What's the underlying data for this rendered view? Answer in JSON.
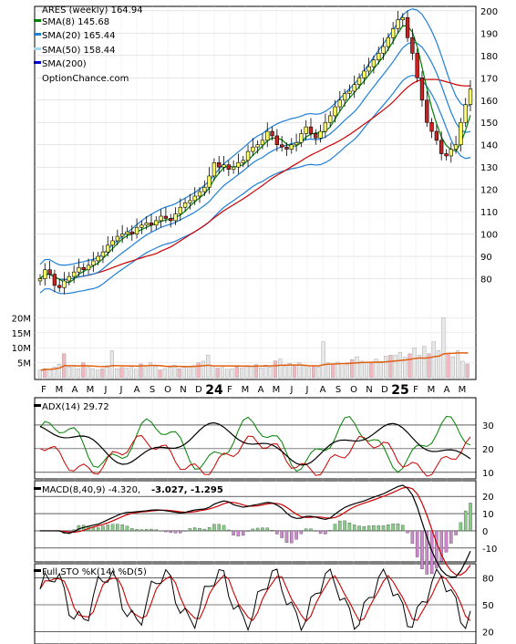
{
  "colors": {
    "sma8": "#008000",
    "sma20": "#1e7fd6",
    "sma50": "#a8d8f0",
    "sma200": "#0000cc",
    "sma_short_line": "#cc0000",
    "sma_mid_line": "#ffdd00",
    "up_candle": "#ffff66",
    "down_candle": "#cc2222",
    "volume_bar": "#f2b8bf",
    "volume_avg": "#e06010",
    "adx_plus": "#008000",
    "adx_minus": "#cc0000",
    "macd_signal": "#cc0000",
    "macd_hist_pos": "#88cc88",
    "macd_hist_neg": "#cc88cc",
    "macd_val": "#cc0000",
    "macd_sig_val": "#1e7fd6"
  },
  "legend": {
    "title": "ARES (weekly) 164.94",
    "sma8": "SMA(8) 145.68",
    "sma20": "SMA(20) 165.44",
    "sma50": "SMA(50) 158.44",
    "sma200": "SMA(200)",
    "source": "OptionChance.com"
  },
  "adx_legend": "ADX(14) 29.72",
  "macd_legend": {
    "label": "MACD(8,40,9) -4.320,",
    "val1": "-3.027,",
    "val2": "-1.295"
  },
  "sto_legend": "Full STO %K(14) %D(5)",
  "chart_data": [
    {
      "type": "candlestick",
      "title": "ARES (weekly) 164.94",
      "ylim": [
        70,
        202
      ],
      "y_ticks": [
        80,
        90,
        100,
        110,
        120,
        130,
        140,
        150,
        160,
        170,
        180,
        190,
        200
      ],
      "x_ticks": [
        "F",
        "M",
        "A",
        "M",
        "J",
        "J",
        "A",
        "S",
        "O",
        "N",
        "D",
        "24",
        "F",
        "M",
        "A",
        "M",
        "J",
        "J",
        "A",
        "S",
        "O",
        "N",
        "D",
        "25",
        "F",
        "M",
        "A",
        "M"
      ],
      "close": [
        80,
        84,
        82,
        77,
        76,
        79,
        81,
        83,
        85,
        84,
        86,
        88,
        90,
        92,
        95,
        97,
        99,
        100,
        101,
        100,
        103,
        104,
        105,
        104,
        106,
        108,
        107,
        106,
        109,
        112,
        114,
        115,
        117,
        119,
        121,
        126,
        132,
        130,
        131,
        129,
        130,
        132,
        133,
        137,
        139,
        140,
        142,
        146,
        144,
        140,
        139,
        138,
        140,
        141,
        145,
        148,
        145,
        143,
        146,
        150,
        153,
        157,
        160,
        163,
        164,
        167,
        170,
        173,
        175,
        178,
        181,
        184,
        188,
        192,
        196,
        197,
        188,
        181,
        170,
        160,
        150,
        146,
        142,
        136,
        135,
        138,
        140,
        150,
        158,
        165
      ]
    },
    {
      "type": "bar",
      "title": "",
      "y_ticks": [
        "5M",
        "10M",
        "15M",
        "20M"
      ],
      "values_m": [
        2.5,
        3,
        2.8,
        3.5,
        4.5,
        8,
        3.6,
        4,
        3,
        5,
        3.4,
        3,
        2.5,
        3,
        4,
        9,
        3,
        3.4,
        3.2,
        3.8,
        2.8,
        4.6,
        3.4,
        5,
        3.8,
        2.6,
        3,
        3.4,
        4.2,
        3,
        3.5,
        3.8,
        4,
        5,
        5.5,
        7.5,
        4,
        3.2,
        3.4,
        2.8,
        3,
        3.6,
        3.2,
        4,
        3.8,
        4.4,
        3.3,
        4.2,
        3.6,
        5.6,
        6.2,
        3.8,
        4.8,
        4,
        5,
        3.8,
        3.4,
        4,
        3.6,
        12,
        5,
        4.6,
        5.2,
        4,
        5,
        6,
        7,
        5.5,
        5,
        4.8,
        6.2,
        5.4,
        7.2,
        7.5,
        7.5,
        8.5,
        6.8,
        8,
        10,
        7.5,
        10.5,
        8,
        12,
        9,
        20,
        8,
        7,
        9,
        5.5,
        4.6
      ]
    },
    {
      "type": "line",
      "title": "ADX(14) 29.72",
      "y_ticks": [
        10,
        20,
        30
      ],
      "ylim": [
        8,
        40
      ]
    },
    {
      "type": "line",
      "title": "MACD(8,40,9) -4.320, -3.027, -1.295",
      "y_ticks": [
        -10,
        0,
        10,
        20
      ],
      "ylim": [
        -17,
        27
      ]
    },
    {
      "type": "line",
      "title": "Full STO %K(14) %D(5)",
      "y_ticks": [
        20,
        50,
        80
      ],
      "ylim": [
        8,
        92
      ]
    }
  ]
}
